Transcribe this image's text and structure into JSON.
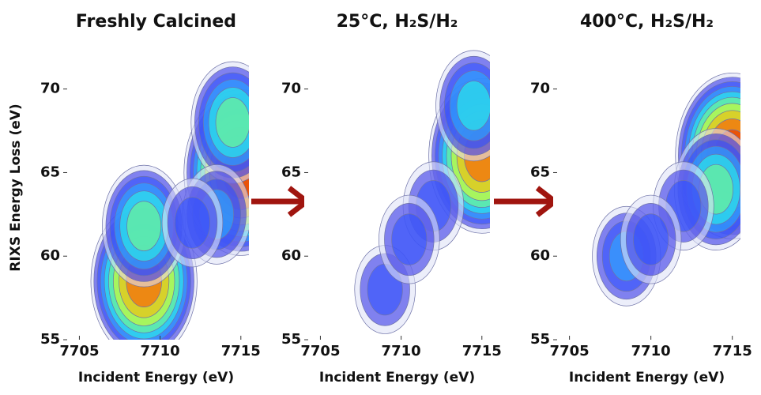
{
  "chart_data": [
    {
      "type": "contour",
      "title": "Freshly Calcined",
      "xlabel": "Incident Energy (eV)",
      "ylabel": "RIXS Energy Loss (eV)",
      "xlim": [
        7704,
        7715.5
      ],
      "ylim": [
        55,
        73.2
      ],
      "xticks": [
        7705,
        7710,
        7715
      ],
      "yticks": [
        55,
        60,
        65,
        70
      ],
      "x": [
        7709,
        7709,
        7715,
        7714.5,
        7713.5,
        7712
      ],
      "y": [
        58.5,
        61.8,
        65,
        68,
        62.5,
        62
      ],
      "values": [
        0.9,
        0.6,
        1.0,
        0.6,
        0.4,
        0.3
      ]
    },
    {
      "type": "contour",
      "title": "25°C, H₂S/H₂",
      "xlabel": "Incident Energy (eV)",
      "xlim": [
        7704,
        7715.5
      ],
      "ylim": [
        55,
        73.2
      ],
      "xticks": [
        7705,
        7710,
        7715
      ],
      "yticks": [
        55,
        60,
        65,
        70
      ],
      "x": [
        7709,
        7715,
        7714.5,
        7712,
        7710.5
      ],
      "y": [
        58,
        66,
        69,
        63,
        61
      ],
      "values": [
        0.3,
        0.9,
        0.5,
        0.3,
        0.3
      ]
    },
    {
      "type": "contour",
      "title": "400°C, H₂S/H₂",
      "xlabel": "Incident Energy (eV)",
      "xlim": [
        7704,
        7715.5
      ],
      "ylim": [
        55,
        73.2
      ],
      "xticks": [
        7705,
        7710,
        7715
      ],
      "yticks": [
        55,
        60,
        65,
        70
      ],
      "x": [
        7708.5,
        7715,
        7714,
        7712,
        7710
      ],
      "y": [
        60,
        66,
        64,
        63,
        61
      ],
      "values": [
        0.4,
        1.0,
        0.6,
        0.3,
        0.3
      ]
    }
  ]
}
